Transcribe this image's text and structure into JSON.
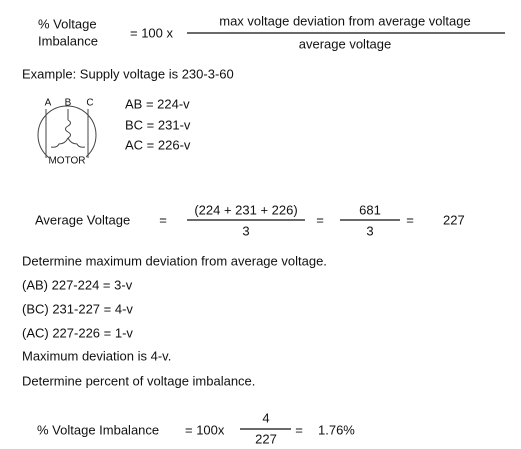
{
  "formula": {
    "lhs_line1": "% Voltage",
    "lhs_line2": "Imbalance",
    "multiplier": "= 100 x",
    "numerator": "max voltage deviation from average voltage",
    "denominator": "average voltage"
  },
  "example": "Example: Supply voltage is 230-3-60",
  "motor": {
    "terminals": [
      "A",
      "B",
      "C"
    ],
    "label": "MOTOR"
  },
  "readings": [
    "AB = 224-v",
    "BC = 231-v",
    "AC = 226-v"
  ],
  "average": {
    "label": "Average Voltage",
    "eq1": "=",
    "num1": "(224 + 231 + 226)",
    "den1": "3",
    "eq2": "=",
    "num2": "681",
    "den2": "3",
    "eq3": "=",
    "result": "227"
  },
  "steps": [
    "Determine maximum deviation from average voltage.",
    "(AB) 227-224 = 3-v",
    "(BC) 231-227 = 4-v",
    "(AC) 227-226 = 1-v",
    "Maximum deviation is 4-v.",
    "Determine percent of voltage imbalance."
  ],
  "final": {
    "label": "% Voltage Imbalance",
    "multiplier": "= 100x",
    "numerator": "4",
    "denominator": "227",
    "eq": "=",
    "result": "1.76%"
  }
}
